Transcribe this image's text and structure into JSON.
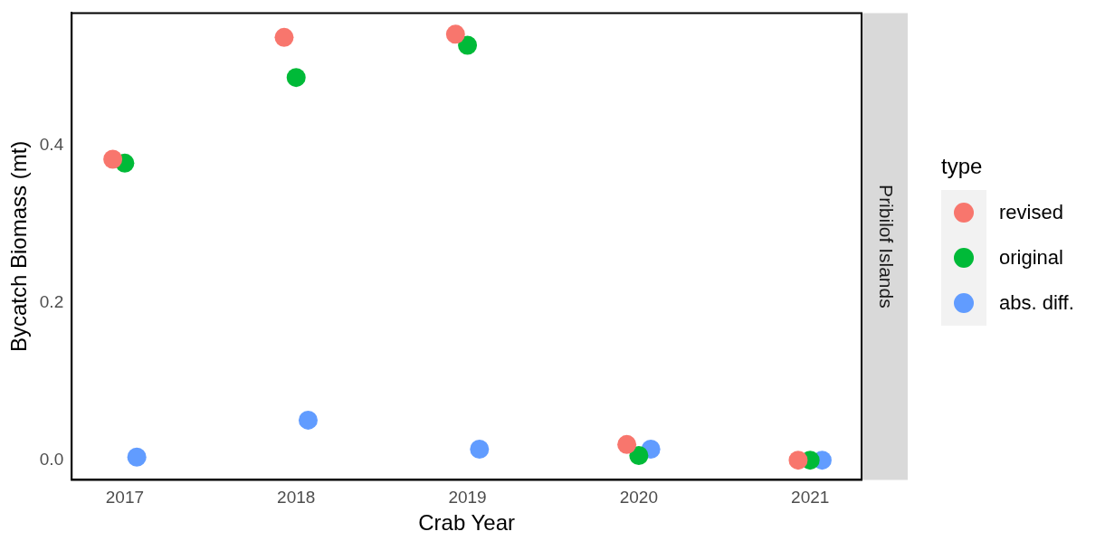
{
  "chart_data": {
    "type": "scatter",
    "xlabel": "Crab Year",
    "ylabel": "Bycatch Biomass (mt)",
    "legend_title": "type",
    "legend": "right",
    "grid": false,
    "marker": "circle",
    "annotations": [
      "Pribilof Islands"
    ],
    "xlim": [
      2016.69,
      2021.3
    ],
    "xticks": [
      2017,
      2018,
      2019,
      2020,
      2021
    ],
    "ylim": [
      -0.025,
      0.569
    ],
    "yticks": [
      {
        "value": 0,
        "label": "0.0"
      },
      {
        "value": 0.2,
        "label": "0.2"
      },
      {
        "value": 0.4,
        "label": "0.4"
      }
    ],
    "series": [
      {
        "name": "revised",
        "color": "#f8766d",
        "x": [
          2016.93,
          2017.93,
          2018.93,
          2019.93,
          2020.93
        ],
        "values": [
          0.383,
          0.538,
          0.542,
          0.02,
          0.0
        ]
      },
      {
        "name": "original",
        "color": "#00ba38",
        "x": [
          2017,
          2018,
          2019,
          2020,
          2021
        ],
        "values": [
          0.378,
          0.487,
          0.528,
          0.006,
          0.0
        ]
      },
      {
        "name": "abs. diff.",
        "color": "#619cff",
        "x": [
          2017.07,
          2018.07,
          2019.07,
          2020.07,
          2021.07
        ],
        "values": [
          0.004,
          0.051,
          0.014,
          0.014,
          0.0
        ]
      }
    ]
  }
}
